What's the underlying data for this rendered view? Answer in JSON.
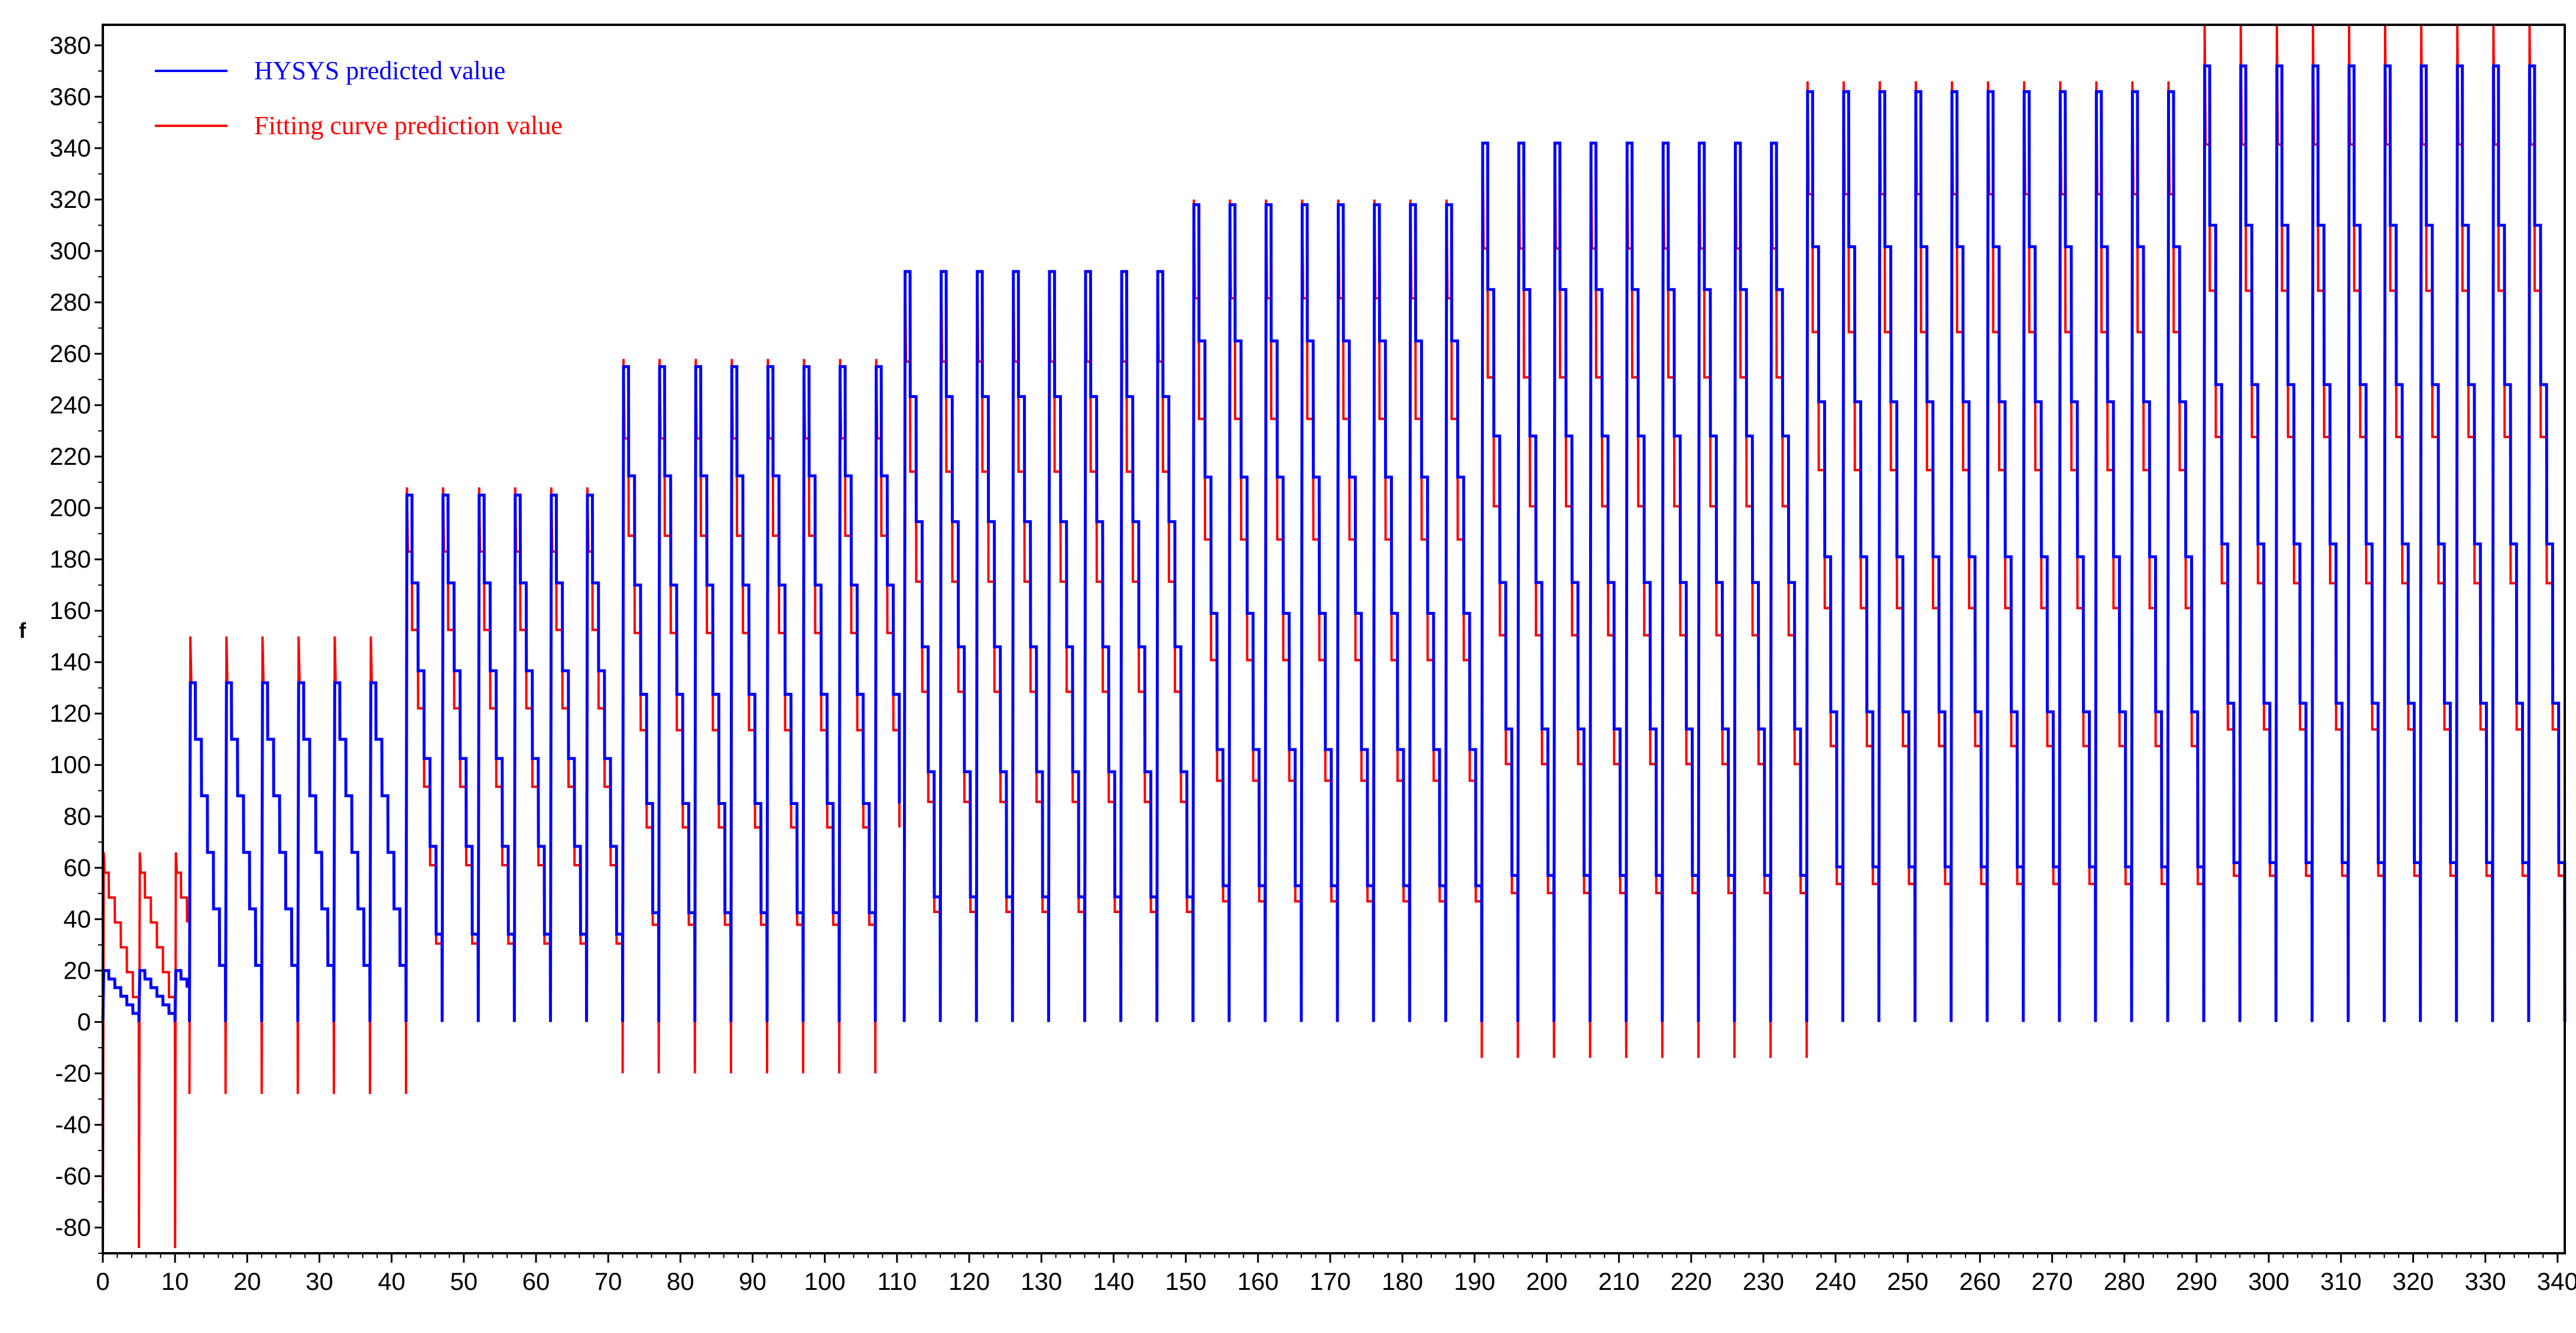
{
  "chart_data": {
    "type": "line",
    "title": "",
    "xlabel": "",
    "ylabel": "f",
    "xlim": [
      0,
      341
    ],
    "ylim": [
      -90,
      388
    ],
    "x_ticks": [
      0,
      10,
      20,
      30,
      40,
      50,
      60,
      70,
      80,
      90,
      100,
      110,
      120,
      130,
      140,
      150,
      160,
      170,
      180,
      190,
      200,
      210,
      220,
      230,
      240,
      250,
      260,
      270,
      280,
      290,
      300,
      310,
      320,
      330,
      340
    ],
    "y_ticks": [
      -80,
      -60,
      -40,
      -20,
      0,
      20,
      40,
      60,
      80,
      100,
      120,
      140,
      160,
      180,
      200,
      220,
      240,
      260,
      280,
      300,
      320,
      340,
      360,
      380
    ],
    "grid": false,
    "legend_position": "top-left",
    "series": [
      {
        "name": "HYSYS predicted value",
        "color": "#0000ff",
        "pattern": "repeating cycles with period ≈ 5; each cycle descends from a segment maximum down to 0 through 6 evenly spaced levels",
        "segments": [
          {
            "x_range": [
              0,
              12
            ],
            "max": 20
          },
          {
            "x_range": [
              12,
              42
            ],
            "max": 132
          },
          {
            "x_range": [
              42,
              72
            ],
            "max": 205
          },
          {
            "x_range": [
              72,
              111
            ],
            "max": 255
          },
          {
            "x_range": [
              111,
              151
            ],
            "max": 292
          },
          {
            "x_range": [
              151,
              191
            ],
            "max": 318
          },
          {
            "x_range": [
              191,
              236
            ],
            "max": 342
          },
          {
            "x_range": [
              236,
              291
            ],
            "max": 362
          },
          {
            "x_range": [
              291,
              341
            ],
            "max": 372
          }
        ]
      },
      {
        "name": "Fitting curve prediction value",
        "color": "#ff0000",
        "pattern": "follows the blue curve with overshoot spikes at cycle peaks and undershoot below 0 at cycle troughs",
        "segments": [
          {
            "x_range": [
              0,
              12
            ],
            "max": 66,
            "min": -88
          },
          {
            "x_range": [
              12,
              42
            ],
            "max": 150,
            "min": -28
          },
          {
            "x_range": [
              42,
              72
            ],
            "max": 208,
            "min": 0
          },
          {
            "x_range": [
              72,
              111
            ],
            "max": 258,
            "min": -20
          },
          {
            "x_range": [
              111,
              151
            ],
            "max": 292,
            "min": 0
          },
          {
            "x_range": [
              151,
              191
            ],
            "max": 320,
            "min": 0
          },
          {
            "x_range": [
              191,
              236
            ],
            "max": 342,
            "min": -14
          },
          {
            "x_range": [
              236,
              291
            ],
            "max": 366,
            "min": 0
          },
          {
            "x_range": [
              291,
              341
            ],
            "max": 388,
            "min": 0
          }
        ]
      }
    ]
  }
}
